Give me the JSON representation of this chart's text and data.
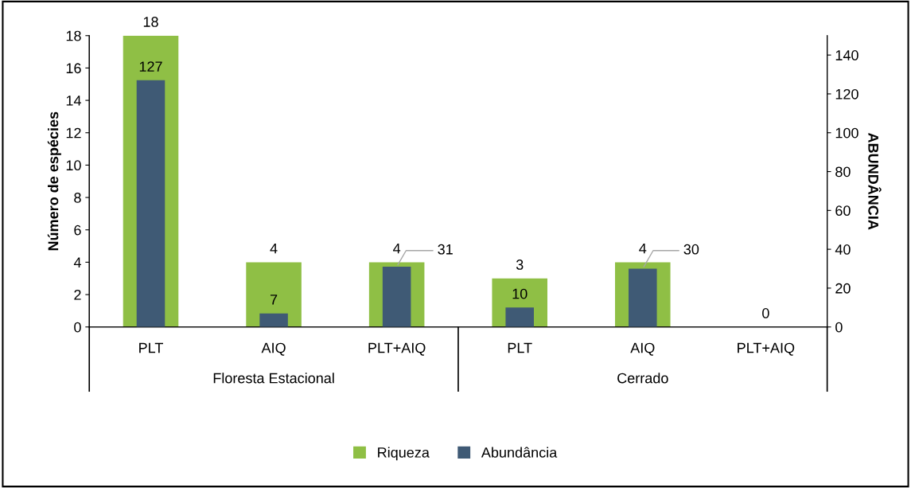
{
  "chart_data": {
    "type": "bar",
    "categories": [
      "PLT",
      "AIQ",
      "PLT+AIQ",
      "PLT",
      "AIQ",
      "PLT+AIQ"
    ],
    "series": [
      {
        "name": "Riqueza",
        "color": "#8fbf45",
        "values": [
          18,
          4,
          4,
          3,
          4,
          0
        ],
        "value_labels": [
          "18",
          "4",
          "4",
          "3",
          "4",
          "0"
        ]
      },
      {
        "name": "Abundância",
        "color": "#3f5a75",
        "axis": "y2",
        "values": [
          127,
          7,
          31,
          10,
          30,
          0
        ],
        "value_labels": [
          "127",
          "7",
          "31",
          "10",
          "30",
          null
        ]
      }
    ],
    "ylabel": "Número de espécies",
    "y2label": "ABUNDÂNCIA",
    "ylim": [
      0,
      18
    ],
    "yticks": [
      0,
      2,
      4,
      6,
      8,
      10,
      12,
      14,
      16,
      18
    ],
    "y2lim": [
      0,
      150
    ],
    "y2ticks": [
      0,
      20,
      40,
      60,
      80,
      100,
      120,
      140
    ],
    "annotations": [
      "Floresta Estacional",
      "Cerrado"
    ],
    "legend": "bottom",
    "grid": false
  }
}
